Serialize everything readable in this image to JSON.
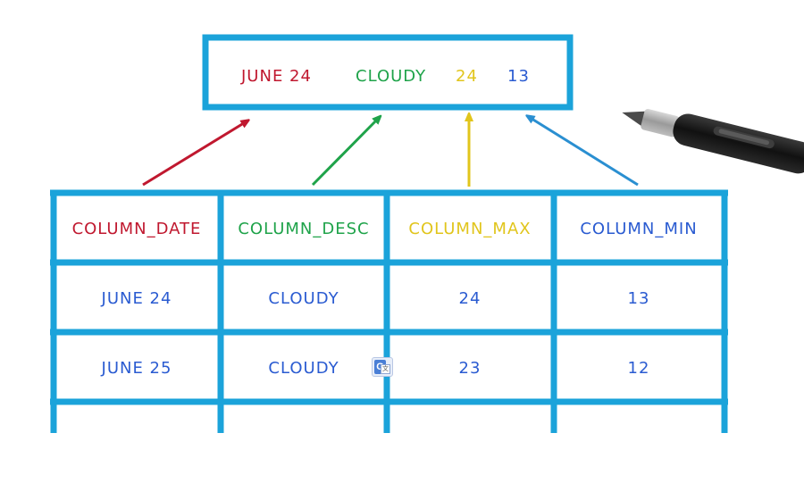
{
  "record": {
    "date": "JUNE 24",
    "desc": "CLOUDY",
    "max": "24",
    "min": "13"
  },
  "table": {
    "headers": [
      "COLUMN_DATE",
      "COLUMN_DESC",
      "COLUMN_MAX",
      "COLUMN_MIN"
    ],
    "rows": [
      [
        "JUNE 24",
        "CLOUDY",
        "24",
        "13"
      ],
      [
        "JUNE 25",
        "CLOUDY",
        "23",
        "12"
      ]
    ]
  },
  "colors": {
    "frame": "#1ba3da",
    "date": "#c0182f",
    "desc": "#1fa34a",
    "max": "#e1c51c",
    "min": "#2a5bd1",
    "cell_text": "#2a5bd1",
    "pen_body": "#1e1e1e"
  },
  "icons": {
    "stylus": "stylus-pen-icon",
    "translate": "google-translate-icon"
  }
}
